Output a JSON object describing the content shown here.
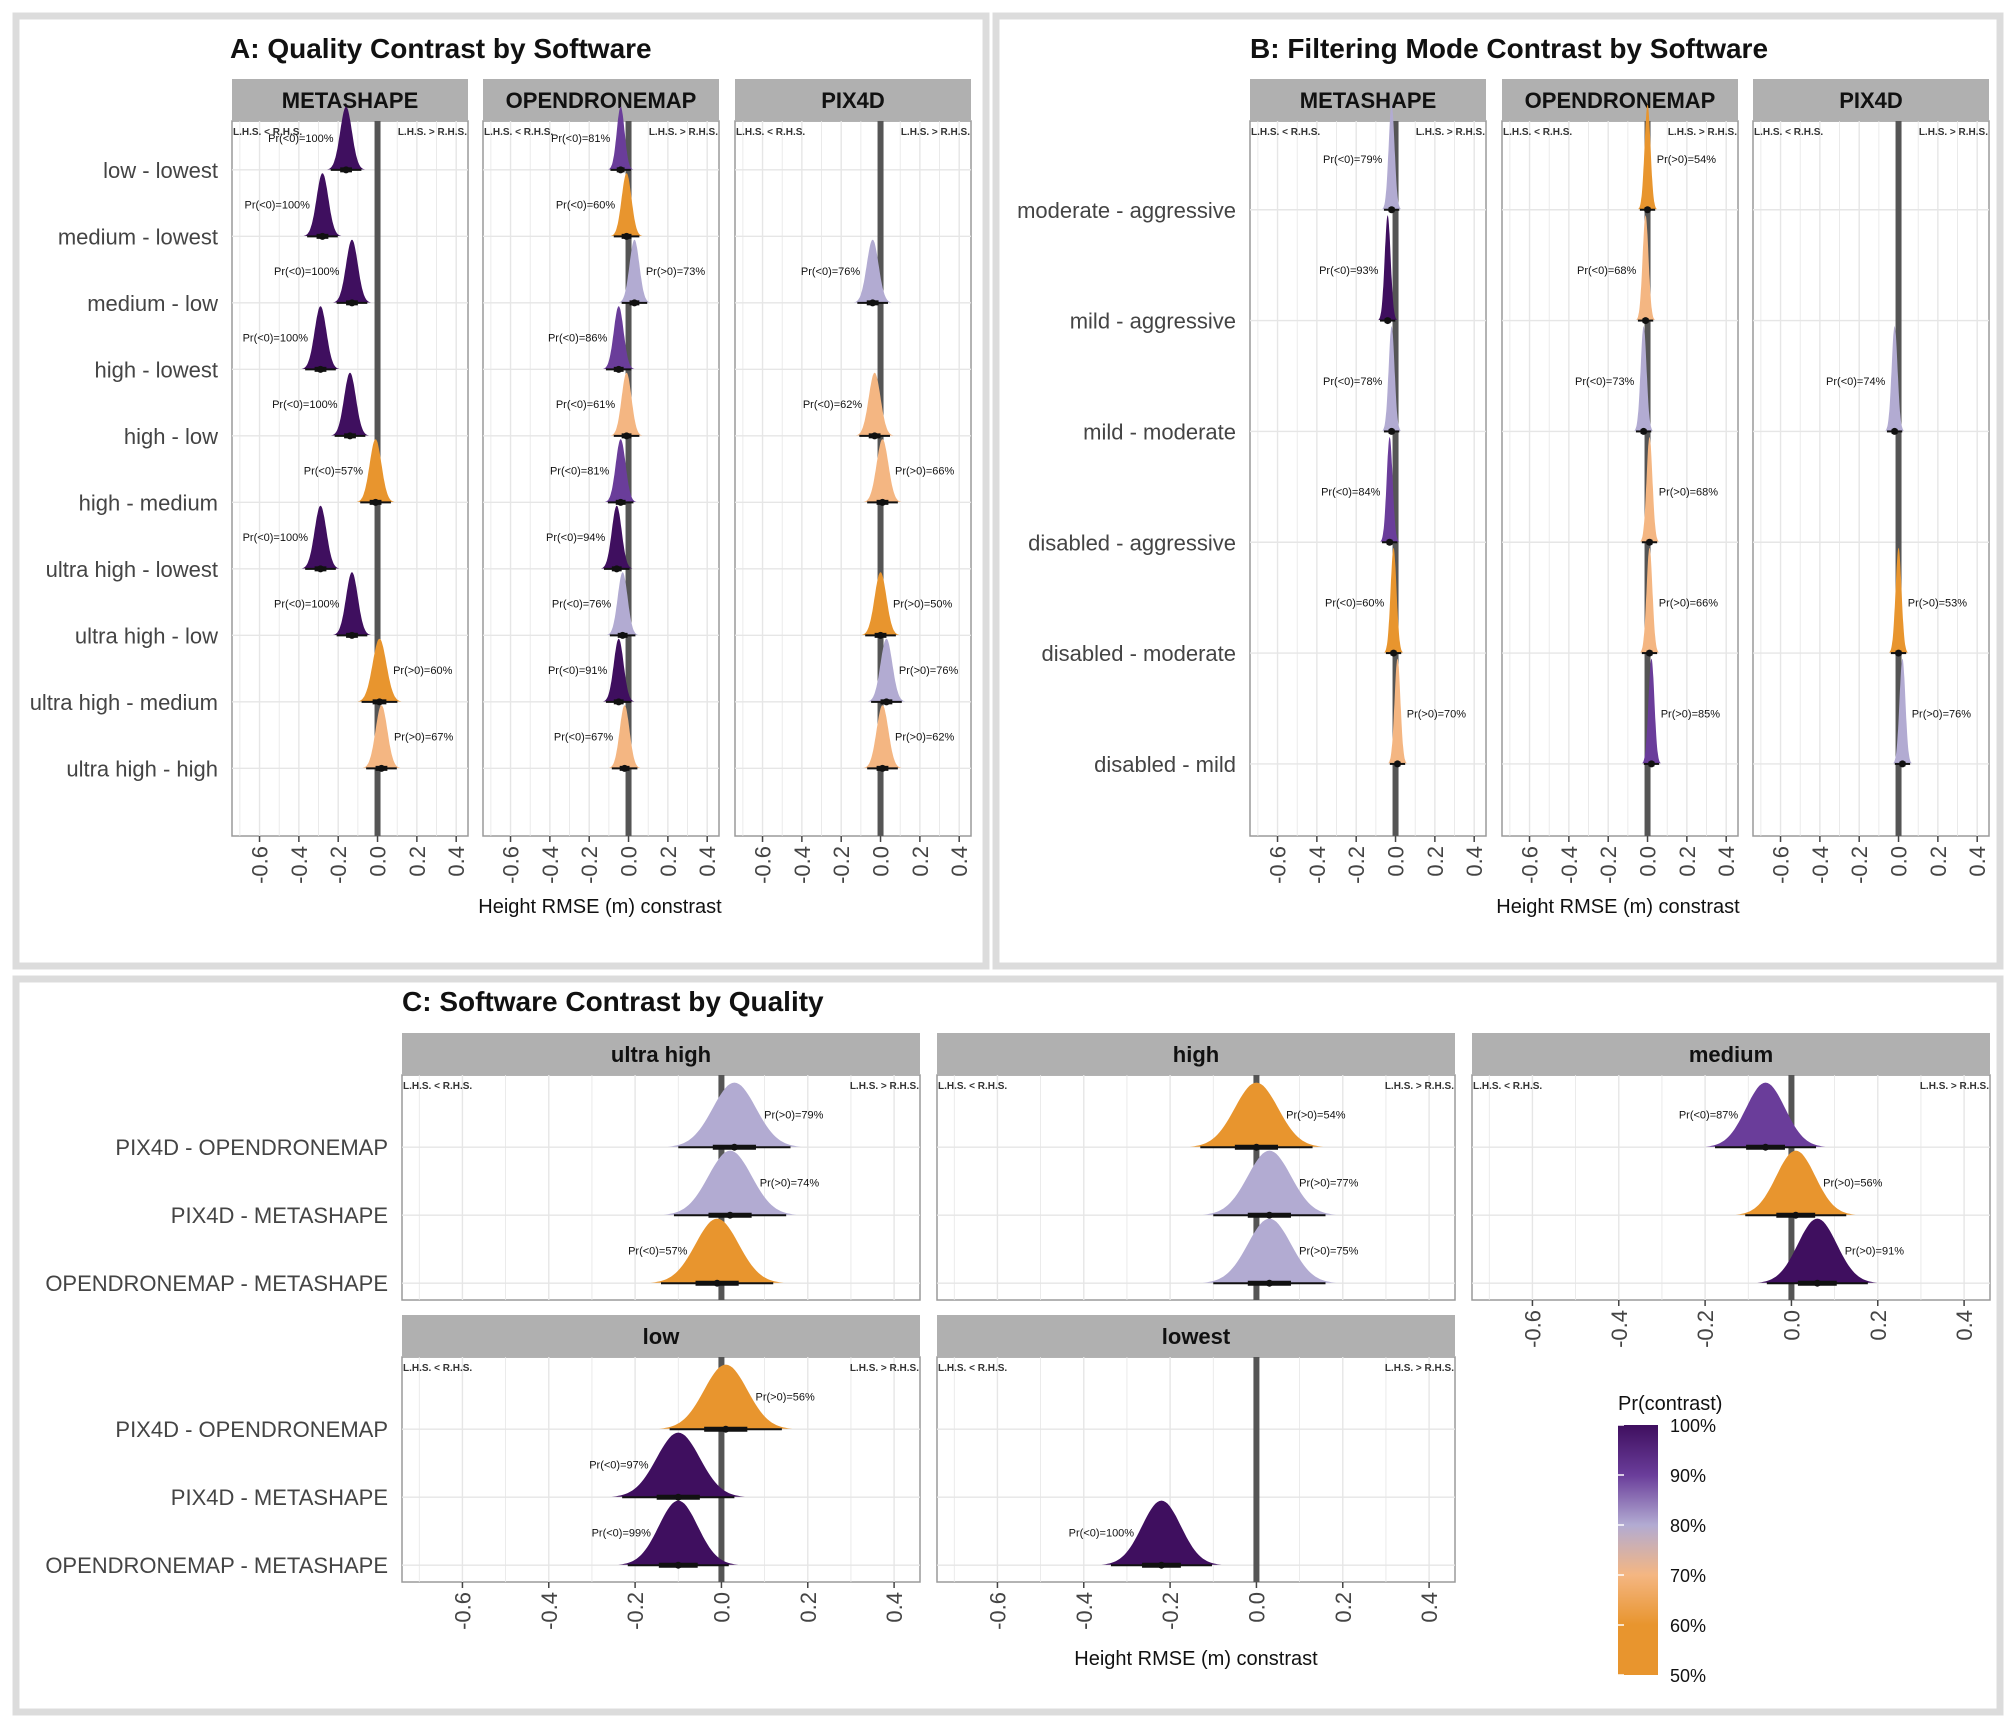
{
  "axis_label": "Height RMSE (m) constrast",
  "lhs_lt": "L.H.S. < R.H.S.",
  "lhs_gt": "L.H.S. > R.H.S.",
  "ticks": [
    "-0.6",
    "-0.4",
    "-0.2",
    "0.0",
    "0.2",
    "0.4"
  ],
  "tick_values": [
    -0.6,
    -0.4,
    -0.2,
    0.0,
    0.2,
    0.4
  ],
  "xlim": [
    -0.74,
    0.46
  ],
  "colors": {
    "c100": "#3f0f5f",
    "c90": "#6a3d9a",
    "c80": "#b2abd2",
    "c70": "#f4b682",
    "c60": "#f0a040",
    "c50": "#e8952e",
    "vline": "#555555",
    "strip": "#b0b0b0",
    "grid": "#e6e6e6",
    "border": "#dcdcdc"
  },
  "legend": {
    "title": "Pr(contrast)",
    "labels": [
      "100%",
      "90%",
      "80%",
      "70%",
      "60%",
      "50%"
    ],
    "colors": [
      "#3f0f5f",
      "#6a3d9a",
      "#b2abd2",
      "#f4b682",
      "#e8952e",
      "#e8952e"
    ]
  },
  "chart_data": [
    {
      "type": "density",
      "title": "A: Quality Contrast by Software",
      "xlabel": "Height RMSE (m) constrast",
      "rows": [
        "low - lowest",
        "medium - lowest",
        "medium - low",
        "high - lowest",
        "high - low",
        "high - medium",
        "ultra high - lowest",
        "ultra high - low",
        "ultra high - medium",
        "ultra high - high"
      ],
      "facets": [
        {
          "name": "METASHAPE",
          "points": [
            {
              "row": 0,
              "mean": -0.16,
              "sd": 0.03,
              "label": "Pr(<0)=100%",
              "color": "#3f0f5f"
            },
            {
              "row": 1,
              "mean": -0.28,
              "sd": 0.03,
              "label": "Pr(<0)=100%",
              "color": "#3f0f5f"
            },
            {
              "row": 2,
              "mean": -0.13,
              "sd": 0.03,
              "label": "Pr(<0)=100%",
              "color": "#3f0f5f"
            },
            {
              "row": 3,
              "mean": -0.29,
              "sd": 0.03,
              "label": "Pr(<0)=100%",
              "color": "#3f0f5f"
            },
            {
              "row": 4,
              "mean": -0.14,
              "sd": 0.03,
              "label": "Pr(<0)=100%",
              "color": "#3f0f5f"
            },
            {
              "row": 5,
              "mean": -0.01,
              "sd": 0.03,
              "label": "Pr(<0)=57%",
              "color": "#e8952e"
            },
            {
              "row": 6,
              "mean": -0.29,
              "sd": 0.03,
              "label": "Pr(<0)=100%",
              "color": "#3f0f5f"
            },
            {
              "row": 7,
              "mean": -0.13,
              "sd": 0.03,
              "label": "Pr(<0)=100%",
              "color": "#3f0f5f"
            },
            {
              "row": 8,
              "mean": 0.01,
              "sd": 0.035,
              "label": "Pr(>0)=60%",
              "color": "#e8952e"
            },
            {
              "row": 9,
              "mean": 0.02,
              "sd": 0.03,
              "label": "Pr(>0)=67%",
              "color": "#f4b682"
            }
          ]
        },
        {
          "name": "OPENDRONEMAP",
          "points": [
            {
              "row": 0,
              "mean": -0.04,
              "sd": 0.02,
              "label": "Pr(<0)=81%",
              "color": "#6a3d9a"
            },
            {
              "row": 1,
              "mean": -0.01,
              "sd": 0.025,
              "label": "Pr(<0)=60%",
              "color": "#e8952e"
            },
            {
              "row": 2,
              "mean": 0.03,
              "sd": 0.025,
              "label": "Pr(>0)=73%",
              "color": "#b2abd2"
            },
            {
              "row": 3,
              "mean": -0.05,
              "sd": 0.025,
              "label": "Pr(<0)=86%",
              "color": "#6a3d9a"
            },
            {
              "row": 4,
              "mean": -0.01,
              "sd": 0.025,
              "label": "Pr(<0)=61%",
              "color": "#f4b682"
            },
            {
              "row": 5,
              "mean": -0.04,
              "sd": 0.025,
              "label": "Pr(<0)=81%",
              "color": "#6a3d9a"
            },
            {
              "row": 6,
              "mean": -0.06,
              "sd": 0.025,
              "label": "Pr(<0)=94%",
              "color": "#3f0f5f"
            },
            {
              "row": 7,
              "mean": -0.03,
              "sd": 0.025,
              "label": "Pr(<0)=76%",
              "color": "#b2abd2"
            },
            {
              "row": 8,
              "mean": -0.05,
              "sd": 0.025,
              "label": "Pr(<0)=91%",
              "color": "#3f0f5f"
            },
            {
              "row": 9,
              "mean": -0.02,
              "sd": 0.025,
              "label": "Pr(<0)=67%",
              "color": "#f4b682"
            }
          ]
        },
        {
          "name": "PIX4D",
          "points": [
            {
              "row": 2,
              "mean": -0.04,
              "sd": 0.03,
              "label": "Pr(<0)=76%",
              "color": "#b2abd2"
            },
            {
              "row": 4,
              "mean": -0.03,
              "sd": 0.03,
              "label": "Pr(<0)=62%",
              "color": "#f4b682"
            },
            {
              "row": 5,
              "mean": 0.01,
              "sd": 0.03,
              "label": "Pr(>0)=66%",
              "color": "#f4b682"
            },
            {
              "row": 7,
              "mean": 0.0,
              "sd": 0.03,
              "label": "Pr(>0)=50%",
              "color": "#e8952e"
            },
            {
              "row": 8,
              "mean": 0.03,
              "sd": 0.03,
              "label": "Pr(>0)=76%",
              "color": "#b2abd2"
            },
            {
              "row": 9,
              "mean": 0.01,
              "sd": 0.03,
              "label": "Pr(>0)=62%",
              "color": "#f4b682"
            }
          ]
        }
      ]
    },
    {
      "type": "density",
      "title": "B: Filtering Mode Contrast by Software",
      "xlabel": "Height RMSE (m) constrast",
      "rows": [
        "moderate - aggressive",
        "mild - aggressive",
        "mild - moderate",
        "disabled - aggressive",
        "disabled - moderate",
        "disabled - mild"
      ],
      "facets": [
        {
          "name": "METASHAPE",
          "points": [
            {
              "row": 0,
              "mean": -0.02,
              "sd": 0.015,
              "label": "Pr(<0)=79%",
              "color": "#b2abd2"
            },
            {
              "row": 1,
              "mean": -0.04,
              "sd": 0.015,
              "label": "Pr(<0)=93%",
              "color": "#3f0f5f"
            },
            {
              "row": 2,
              "mean": -0.02,
              "sd": 0.015,
              "label": "Pr(<0)=78%",
              "color": "#b2abd2"
            },
            {
              "row": 3,
              "mean": -0.03,
              "sd": 0.015,
              "label": "Pr(<0)=84%",
              "color": "#6a3d9a"
            },
            {
              "row": 4,
              "mean": -0.01,
              "sd": 0.015,
              "label": "Pr(<0)=60%",
              "color": "#e8952e"
            },
            {
              "row": 5,
              "mean": 0.01,
              "sd": 0.015,
              "label": "Pr(>0)=70%",
              "color": "#f4b682"
            }
          ]
        },
        {
          "name": "OPENDRONEMAP",
          "points": [
            {
              "row": 0,
              "mean": 0.0,
              "sd": 0.015,
              "label": "Pr(>0)=54%",
              "color": "#e8952e"
            },
            {
              "row": 1,
              "mean": -0.01,
              "sd": 0.015,
              "label": "Pr(<0)=68%",
              "color": "#f4b682"
            },
            {
              "row": 2,
              "mean": -0.02,
              "sd": 0.015,
              "label": "Pr(<0)=73%",
              "color": "#b2abd2"
            },
            {
              "row": 3,
              "mean": 0.01,
              "sd": 0.015,
              "label": "Pr(>0)=68%",
              "color": "#f4b682"
            },
            {
              "row": 4,
              "mean": 0.01,
              "sd": 0.015,
              "label": "Pr(>0)=66%",
              "color": "#f4b682"
            },
            {
              "row": 5,
              "mean": 0.02,
              "sd": 0.015,
              "label": "Pr(>0)=85%",
              "color": "#6a3d9a"
            }
          ]
        },
        {
          "name": "PIX4D",
          "points": [
            {
              "row": 2,
              "mean": -0.02,
              "sd": 0.015,
              "label": "Pr(<0)=74%",
              "color": "#b2abd2"
            },
            {
              "row": 4,
              "mean": 0.0,
              "sd": 0.015,
              "label": "Pr(>0)=53%",
              "color": "#e8952e"
            },
            {
              "row": 5,
              "mean": 0.02,
              "sd": 0.015,
              "label": "Pr(>0)=76%",
              "color": "#b2abd2"
            }
          ]
        }
      ]
    },
    {
      "type": "density",
      "title": "C: Software Contrast by Quality",
      "xlabel": "Height RMSE (m) constrast",
      "rows": [
        "PIX4D - OPENDRONEMAP",
        "PIX4D - METASHAPE",
        "OPENDRONEMAP - METASHAPE"
      ],
      "facets": [
        {
          "name": "ultra high",
          "points": [
            {
              "row": 0,
              "mean": 0.03,
              "sd": 0.05,
              "label": "Pr(>0)=79%",
              "color": "#b2abd2"
            },
            {
              "row": 1,
              "mean": 0.02,
              "sd": 0.05,
              "label": "Pr(>0)=74%",
              "color": "#b2abd2"
            },
            {
              "row": 2,
              "mean": -0.01,
              "sd": 0.05,
              "label": "Pr(<0)=57%",
              "color": "#e8952e"
            }
          ]
        },
        {
          "name": "high",
          "points": [
            {
              "row": 0,
              "mean": 0.0,
              "sd": 0.05,
              "label": "Pr(>0)=54%",
              "color": "#e8952e"
            },
            {
              "row": 1,
              "mean": 0.03,
              "sd": 0.05,
              "label": "Pr(>0)=77%",
              "color": "#b2abd2"
            },
            {
              "row": 2,
              "mean": 0.03,
              "sd": 0.05,
              "label": "Pr(>0)=75%",
              "color": "#b2abd2"
            }
          ]
        },
        {
          "name": "medium",
          "points": [
            {
              "row": 0,
              "mean": -0.06,
              "sd": 0.045,
              "label": "Pr(<0)=87%",
              "color": "#6a3d9a"
            },
            {
              "row": 1,
              "mean": 0.01,
              "sd": 0.045,
              "label": "Pr(>0)=56%",
              "color": "#e8952e"
            },
            {
              "row": 2,
              "mean": 0.06,
              "sd": 0.045,
              "label": "Pr(>0)=91%",
              "color": "#3f0f5f"
            }
          ]
        },
        {
          "name": "low",
          "points": [
            {
              "row": 0,
              "mean": 0.01,
              "sd": 0.05,
              "label": "Pr(>0)=56%",
              "color": "#e8952e"
            },
            {
              "row": 1,
              "mean": -0.1,
              "sd": 0.05,
              "label": "Pr(<0)=97%",
              "color": "#3f0f5f"
            },
            {
              "row": 2,
              "mean": -0.1,
              "sd": 0.045,
              "label": "Pr(<0)=99%",
              "color": "#3f0f5f"
            }
          ]
        },
        {
          "name": "lowest",
          "points": [
            {
              "row": 2,
              "mean": -0.22,
              "sd": 0.045,
              "label": "Pr(<0)=100%",
              "color": "#3f0f5f"
            }
          ]
        }
      ]
    }
  ]
}
